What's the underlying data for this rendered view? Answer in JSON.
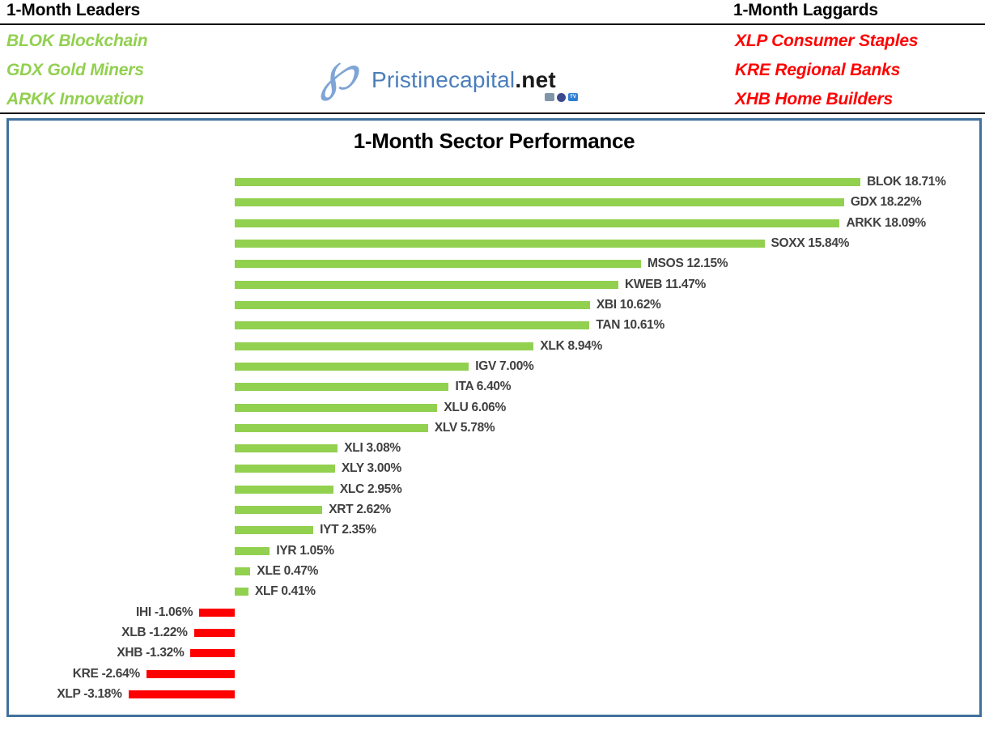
{
  "header": {
    "leaders": {
      "title": "1-Month Leaders",
      "items": [
        "BLOK Blockchain",
        "GDX Gold Miners",
        "ARKK Innovation"
      ]
    },
    "laggards": {
      "title": "1-Month Laggards",
      "items": [
        "XLP Consumer Staples",
        "KRE Regional Banks",
        "XHB Home Builders"
      ]
    },
    "logo": {
      "monogram": "℘",
      "brand": "Pristinecapital",
      "tld": ".net",
      "social_icons": [
        "monitor-icon",
        "discord-icon",
        "tv-icon"
      ]
    }
  },
  "colors": {
    "leaders_green": "#92D050",
    "laggards_red": "#FF0000",
    "chart_border_blue": "#41719C",
    "brand_blue": "#4A7EBB",
    "monogram_blue": "#7FA5D6",
    "bar_label_gray": "#404040"
  },
  "chart_data": {
    "type": "bar",
    "orientation": "horizontal",
    "title": "1-Month Sector Performance",
    "categories": [
      "BLOK",
      "GDX",
      "ARKK",
      "SOXX",
      "MSOS",
      "KWEB",
      "XBI",
      "TAN",
      "XLK",
      "IGV",
      "ITA",
      "XLU",
      "XLV",
      "XLI",
      "XLY",
      "XLC",
      "XRT",
      "IYT",
      "IYR",
      "XLE",
      "XLF",
      "IHI",
      "XLB",
      "XHB",
      "KRE",
      "XLP"
    ],
    "values": [
      18.71,
      18.22,
      18.09,
      15.84,
      12.15,
      11.47,
      10.62,
      10.61,
      8.94,
      7.0,
      6.4,
      6.06,
      5.78,
      3.08,
      3.0,
      2.95,
      2.62,
      2.35,
      1.05,
      0.47,
      0.41,
      -1.06,
      -1.22,
      -1.32,
      -2.64,
      -3.18
    ],
    "value_suffix": "%",
    "xlim": [
      -3.18,
      18.71
    ],
    "grid": false,
    "legend": false,
    "axis_labels_visible": false,
    "data_label_format": "TICKER VALUE%",
    "positive_color": "#92D050",
    "negative_color": "#FF0000",
    "label_color": "#404040"
  }
}
